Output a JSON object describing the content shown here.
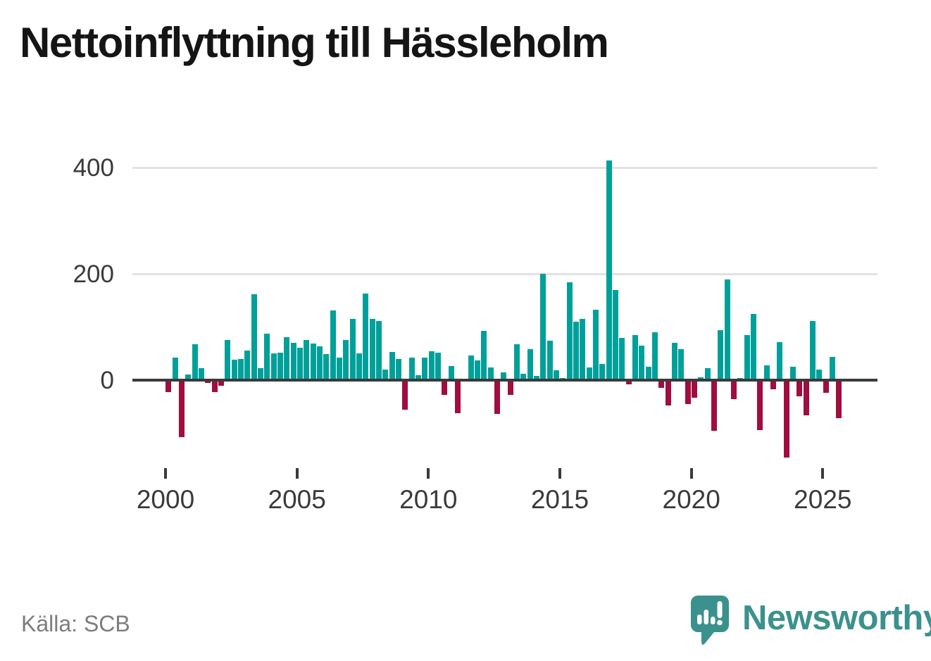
{
  "title": "Nettoinflyttning till Hässleholm",
  "source": "Källa: SCB",
  "logo": {
    "text": "Newsworthy"
  },
  "chart_data": {
    "type": "bar",
    "title": "Nettoinflyttning till Hässleholm",
    "frequency": "quarterly",
    "start_period": "2000-Q1",
    "end_period": "2025-Q3",
    "values": [
      -22,
      43,
      -108,
      11,
      68,
      22,
      -5,
      -23,
      -10,
      75,
      38,
      40,
      56,
      162,
      22,
      88,
      50,
      52,
      81,
      70,
      61,
      76,
      69,
      64,
      49,
      131,
      43,
      76,
      115,
      50,
      163,
      116,
      111,
      20,
      53,
      40,
      -56,
      42,
      9,
      43,
      55,
      52,
      -28,
      26,
      -62,
      0,
      47,
      37,
      93,
      24,
      -64,
      15,
      -28,
      67,
      12,
      58,
      8,
      200,
      74,
      18,
      4,
      185,
      110,
      116,
      24,
      132,
      30,
      414,
      170,
      79,
      -8,
      85,
      65,
      25,
      90,
      -15,
      -48,
      70,
      58,
      -45,
      -33,
      5,
      23,
      -96,
      94,
      190,
      -36,
      4,
      85,
      125,
      -94,
      28,
      -17,
      72,
      -146,
      25,
      -30,
      -66,
      112,
      20,
      -24,
      44,
      -72
    ],
    "y_ticks": [
      0,
      200,
      400
    ],
    "x_tick_years": [
      2000,
      2005,
      2010,
      2015,
      2020,
      2025
    ],
    "ylim": [
      -167,
      445
    ],
    "grid": "horizontal",
    "legend": "none",
    "positive_color": "#00a09a",
    "negative_color": "#a10d40"
  },
  "colors": {
    "title": "#151515",
    "axis_text": "#3a3a3a",
    "gridline": "#e2e2e2",
    "zero_axis": "#3a3a3a",
    "source_text": "#7d7d7d",
    "logo_teal": "#3b918d"
  }
}
